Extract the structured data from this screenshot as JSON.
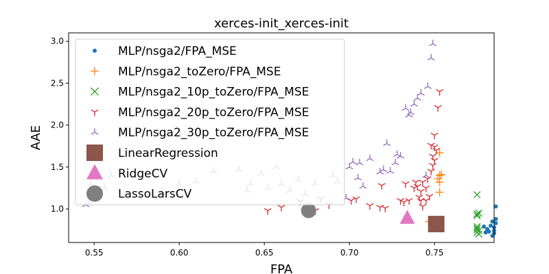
{
  "chart_data": {
    "type": "scatter",
    "title": "xerces-init_xerces-init",
    "xlabel": "FPA",
    "ylabel": "AAE",
    "xlim": [
      0.535,
      0.785
    ],
    "ylim": [
      0.6,
      3.1
    ],
    "xticks": [
      0.55,
      0.6,
      0.65,
      0.7,
      0.75
    ],
    "xtick_labels": [
      "0.55",
      "0.60",
      "0.65",
      "0.70",
      "0.75"
    ],
    "yticks": [
      1.0,
      1.5,
      2.0,
      2.5,
      3.0
    ],
    "ytick_labels": [
      "1.0",
      "1.5",
      "2.0",
      "2.5",
      "3.0"
    ],
    "grid": false,
    "legend_position": "top-left",
    "series": [
      {
        "name": "MLP/nsga2/FPA_MSE",
        "marker": "dot",
        "color": "#1f77b4",
        "points": [
          [
            0.779,
            0.79
          ],
          [
            0.781,
            0.76
          ],
          [
            0.782,
            0.73
          ],
          [
            0.783,
            0.8
          ],
          [
            0.784,
            0.68
          ],
          [
            0.784,
            0.85
          ],
          [
            0.785,
            0.78
          ],
          [
            0.785,
            0.71
          ],
          [
            0.786,
            0.88
          ],
          [
            0.786,
            0.83
          ],
          [
            0.786,
            1.03
          ],
          [
            0.78,
            0.72
          ],
          [
            0.785,
            0.74
          ]
        ]
      },
      {
        "name": "MLP/nsga2_toZero/FPA_MSE",
        "marker": "plus",
        "color": "#ff7f0e",
        "points": [
          [
            0.753,
            1.67
          ],
          [
            0.753,
            1.4
          ],
          [
            0.754,
            1.41
          ],
          [
            0.752,
            1.36
          ],
          [
            0.753,
            1.32
          ],
          [
            0.753,
            1.2
          ],
          [
            0.747,
            0.85
          ],
          [
            0.751,
            0.82
          ],
          [
            0.749,
            0.84
          ]
        ]
      },
      {
        "name": "MLP/nsga2_10p_toZero/FPA_MSE",
        "marker": "x",
        "color": "#2ca02c",
        "points": [
          [
            0.775,
            1.17
          ],
          [
            0.775,
            0.94
          ],
          [
            0.776,
            0.95
          ],
          [
            0.775,
            0.92
          ],
          [
            0.775,
            0.79
          ],
          [
            0.775,
            0.77
          ],
          [
            0.776,
            0.74
          ],
          [
            0.775,
            0.72
          ],
          [
            0.776,
            0.7
          ],
          [
            0.775,
            0.75
          ]
        ]
      },
      {
        "name": "MLP/nsga2_20p_toZero/FPA_MSE",
        "marker": "tri_down",
        "color": "#d62728",
        "points": [
          [
            0.652,
            0.98
          ],
          [
            0.68,
            0.98
          ],
          [
            0.66,
            1.02
          ],
          [
            0.671,
            1.09
          ],
          [
            0.683,
            1.12
          ],
          [
            0.688,
            1.05
          ],
          [
            0.701,
            1.1
          ],
          [
            0.704,
            1.12
          ],
          [
            0.712,
            1.04
          ],
          [
            0.718,
            1.02
          ],
          [
            0.721,
            1.01
          ],
          [
            0.719,
            1.28
          ],
          [
            0.73,
            1.1
          ],
          [
            0.732,
            1.08
          ],
          [
            0.735,
            1.1
          ],
          [
            0.738,
            1.25
          ],
          [
            0.74,
            1.27
          ],
          [
            0.741,
            1.14
          ],
          [
            0.742,
            1.21
          ],
          [
            0.743,
            1.03
          ],
          [
            0.743,
            1.32
          ],
          [
            0.745,
            1.25
          ],
          [
            0.746,
            1.36
          ],
          [
            0.745,
            1.1
          ],
          [
            0.748,
            1.45
          ],
          [
            0.749,
            1.52
          ],
          [
            0.75,
            1.58
          ],
          [
            0.749,
            1.63
          ],
          [
            0.751,
            1.7
          ],
          [
            0.75,
            1.74
          ],
          [
            0.748,
            1.76
          ],
          [
            0.75,
            1.88
          ],
          [
            0.752,
            2.21
          ],
          [
            0.753,
            2.4
          ],
          [
            0.742,
            1.1
          ],
          [
            0.747,
            1.15
          ],
          [
            0.733,
            1.3
          ],
          [
            0.739,
            1.32
          ]
        ]
      },
      {
        "name": "MLP/nsga2_30p_toZero/FPA_MSE",
        "marker": "tri_up",
        "color": "#9467bd",
        "points": [
          [
            0.545,
            1.05
          ],
          [
            0.547,
            1.07
          ],
          [
            0.548,
            1.3
          ],
          [
            0.552,
            1.45
          ],
          [
            0.556,
            1.25
          ],
          [
            0.56,
            1.4
          ],
          [
            0.59,
            1.2
          ],
          [
            0.6,
            1.3
          ],
          [
            0.61,
            1.33
          ],
          [
            0.62,
            1.45
          ],
          [
            0.635,
            1.47
          ],
          [
            0.64,
            1.22
          ],
          [
            0.642,
            1.3
          ],
          [
            0.648,
            1.42
          ],
          [
            0.652,
            1.25
          ],
          [
            0.657,
            1.5
          ],
          [
            0.66,
            1.3
          ],
          [
            0.665,
            1.22
          ],
          [
            0.67,
            1.35
          ],
          [
            0.674,
            1.18
          ],
          [
            0.68,
            1.3
          ],
          [
            0.69,
            1.4
          ],
          [
            0.693,
            1.33
          ],
          [
            0.698,
            1.13
          ],
          [
            0.7,
            1.5
          ],
          [
            0.702,
            1.56
          ],
          [
            0.705,
            1.37
          ],
          [
            0.708,
            1.27
          ],
          [
            0.718,
            1.44
          ],
          [
            0.72,
            1.47
          ],
          [
            0.722,
            1.78
          ],
          [
            0.724,
            1.45
          ],
          [
            0.727,
            1.55
          ],
          [
            0.728,
            1.65
          ],
          [
            0.73,
            1.63
          ],
          [
            0.733,
            2.2
          ],
          [
            0.735,
            2.12
          ],
          [
            0.736,
            2.15
          ],
          [
            0.738,
            2.25
          ],
          [
            0.74,
            2.32
          ],
          [
            0.742,
            2.38
          ],
          [
            0.746,
            2.46
          ],
          [
            0.748,
            2.8
          ],
          [
            0.749,
            2.97
          ],
          [
            0.706,
            1.55
          ],
          [
            0.712,
            1.6
          ],
          [
            0.745,
            1.4
          ]
        ]
      },
      {
        "name": "LinearRegression",
        "marker": "square",
        "color": "#8c564b",
        "points": [
          [
            0.751,
            0.82
          ]
        ]
      },
      {
        "name": "RidgeCV",
        "marker": "triangle",
        "color": "#e377c2",
        "points": [
          [
            0.734,
            0.89
          ]
        ]
      },
      {
        "name": "LassoLarsCV",
        "marker": "circle",
        "color": "#7f7f7f",
        "points": [
          [
            0.676,
            0.98
          ]
        ]
      }
    ]
  }
}
